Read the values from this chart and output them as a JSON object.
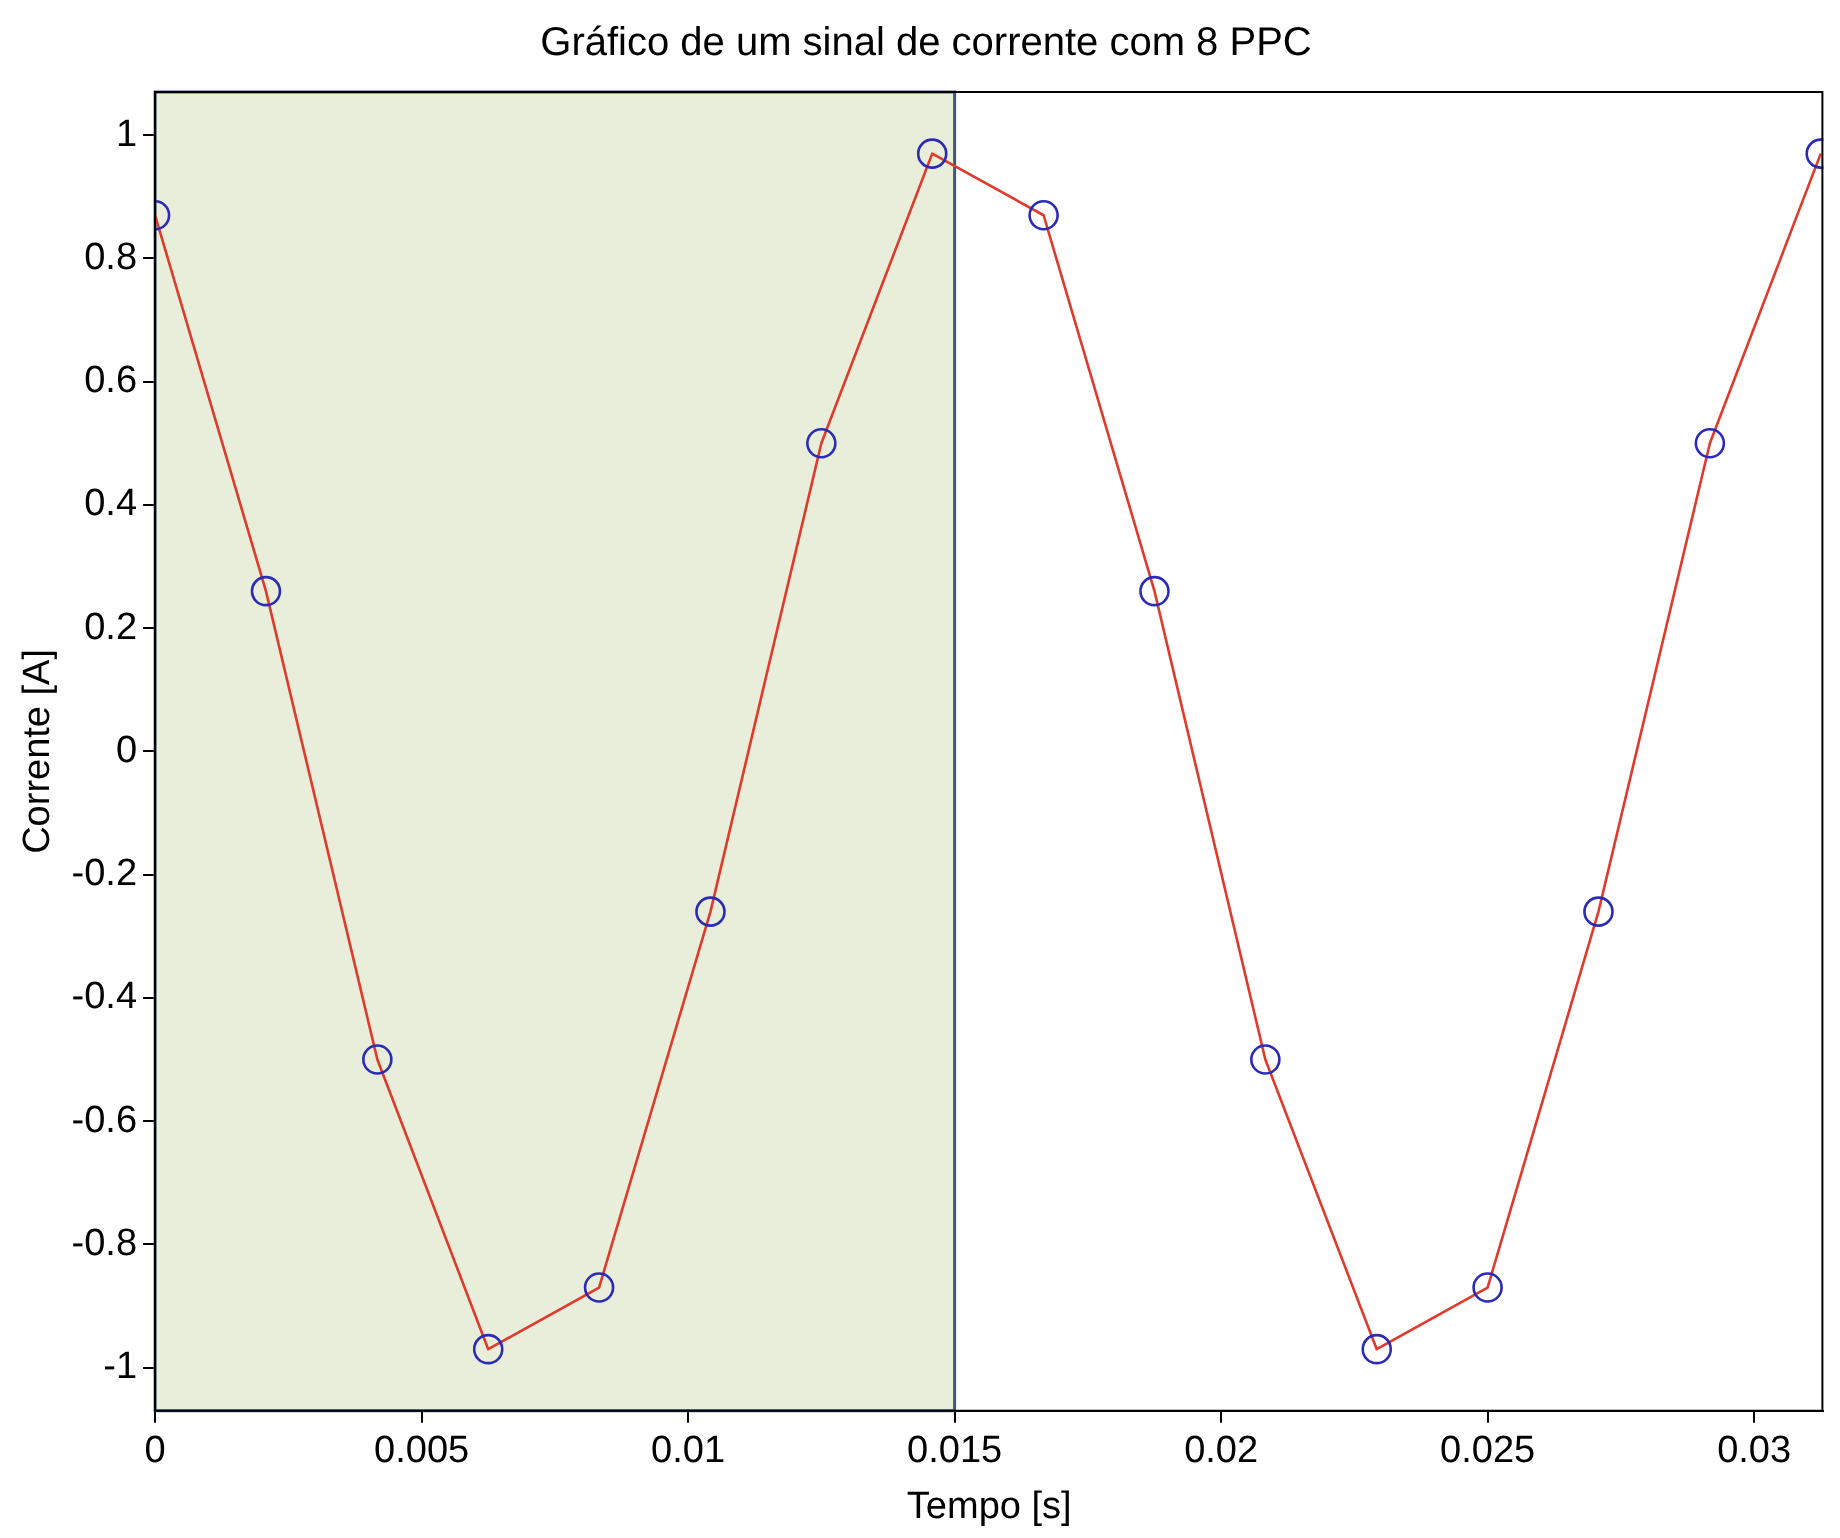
{
  "chart_data": {
    "type": "line",
    "title": "Gráfico de um sinal de corrente com 8 PPC",
    "xlabel": "Tempo [s]",
    "ylabel": "Corrente [A]",
    "x": [
      0,
      0.00208,
      0.00417,
      0.00625,
      0.00833,
      0.01042,
      0.0125,
      0.01458,
      0.01667,
      0.01875,
      0.02083,
      0.02292,
      0.025,
      0.02708,
      0.02917,
      0.03125
    ],
    "series": [
      {
        "color": "#e03a2c",
        "values": [
          0.87,
          0.26,
          -0.5,
          -0.97,
          -0.87,
          -0.26,
          0.5,
          0.97,
          0.87,
          0.26,
          -0.5,
          -0.97,
          -0.87,
          -0.26,
          0.5,
          0.97
        ]
      }
    ],
    "marker": "circle",
    "line_style": "solid",
    "xlim": [
      0,
      0.0313
    ],
    "xticks": [
      0,
      0.005,
      0.01,
      0.015,
      0.02,
      0.025,
      0.03
    ],
    "ylim": [
      -1.07,
      1.07
    ],
    "yticks": [
      -1,
      -0.8,
      -0.6,
      -0.4,
      -0.2,
      0,
      0.2,
      0.4,
      0.6,
      0.8,
      1
    ],
    "bands": [
      {
        "axis": "x",
        "from": 0,
        "to": 0.015,
        "color": "#e8eed9"
      }
    ],
    "grid": false,
    "legend": false
  }
}
